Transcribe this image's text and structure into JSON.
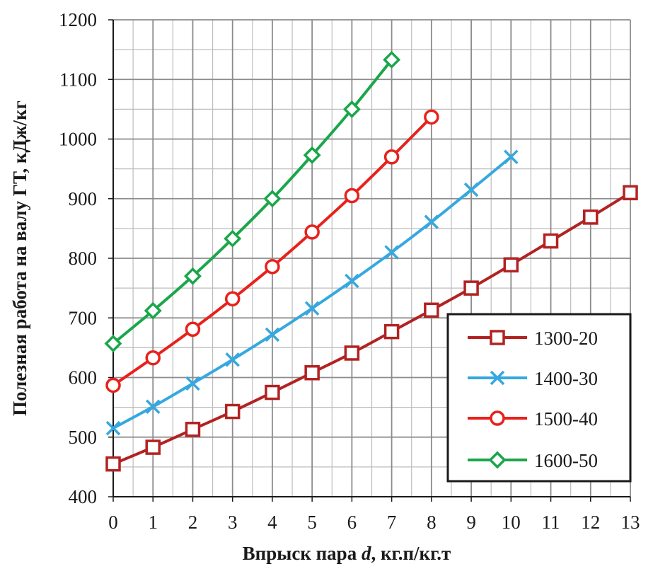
{
  "chart_data": {
    "type": "line",
    "xlabel_main": "Впрыск пара ",
    "xlabel_var": "d",
    "xlabel_unit": ", кг.п/кг.т",
    "ylabel": "Полезная работа на валу ГТ, кДж/кг",
    "xlim": [
      0,
      13
    ],
    "ylim": [
      400,
      1200
    ],
    "x_ticks": [
      "0",
      "1",
      "2",
      "3",
      "4",
      "5",
      "6",
      "7",
      "8",
      "9",
      "10",
      "11",
      "12",
      "13"
    ],
    "y_ticks": [
      "400",
      "500",
      "600",
      "700",
      "800",
      "900",
      "1000",
      "1100",
      "1200"
    ],
    "grid": true,
    "legend_position": "bottom-right",
    "series": [
      {
        "name": "1300-20",
        "color": "#b22222",
        "marker": "square",
        "x": [
          0,
          1,
          2,
          3,
          4,
          5,
          6,
          7,
          8,
          9,
          10,
          11,
          12,
          13
        ],
        "y": [
          455,
          483,
          513,
          543,
          575,
          608,
          641,
          677,
          713,
          750,
          789,
          829,
          869,
          910
        ]
      },
      {
        "name": "1400-30",
        "color": "#35a8e0",
        "marker": "x",
        "x": [
          0,
          1,
          2,
          3,
          4,
          5,
          6,
          7,
          8,
          9,
          10
        ],
        "y": [
          515,
          551,
          590,
          630,
          672,
          716,
          762,
          810,
          861,
          915,
          970
        ]
      },
      {
        "name": "1500-40",
        "color": "#e8211c",
        "marker": "circle",
        "x": [
          0,
          1,
          2,
          3,
          4,
          5,
          6,
          7,
          8
        ],
        "y": [
          587,
          633,
          681,
          732,
          786,
          844,
          905,
          970,
          1037
        ]
      },
      {
        "name": "1600-50",
        "color": "#1aa64a",
        "marker": "diamond",
        "x": [
          0,
          1,
          2,
          3,
          4,
          5,
          6,
          7
        ],
        "y": [
          657,
          712,
          770,
          833,
          900,
          973,
          1050,
          1133
        ]
      }
    ]
  }
}
